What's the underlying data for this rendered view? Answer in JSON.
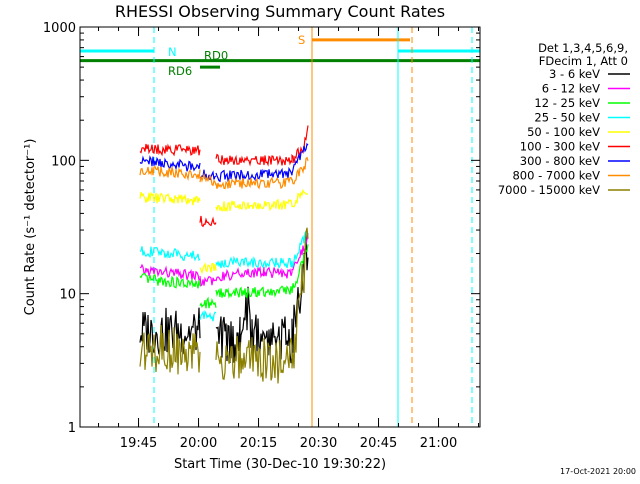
{
  "chart_data": {
    "type": "line",
    "title": "RHESSI Observing Summary Count Rates",
    "xlabel": "Start Time (30-Dec-10 19:30:22)",
    "ylabel": "Count Rate (s⁻¹ detector⁻¹)",
    "yscale": "log",
    "ylim": [
      1,
      1000
    ],
    "xlim_minutes": [
      0,
      100
    ],
    "x_ticks": [
      "19:45",
      "20:00",
      "20:15",
      "20:30",
      "20:45",
      "21:00"
    ],
    "y_ticks": [
      "1",
      "10",
      "100",
      "1000"
    ],
    "legend_header": [
      "Det 1,3,4,5,6,9,",
      "FDecim 1, Att 0"
    ],
    "timestamp": "17-Oct-2021 20:00",
    "series": [
      {
        "name": "3 - 6 keV",
        "color": "#000000",
        "segments": [
          [
            [
              15,
              5.2
            ],
            [
              30,
              5.2
            ]
          ],
          [
            [
              34,
              4.5
            ],
            [
              40,
              4.5
            ],
            [
              42,
              8
            ],
            [
              43,
              5
            ],
            [
              53,
              4.5
            ],
            [
              57,
              25
            ]
          ]
        ]
      },
      {
        "name": "6 - 12 keV",
        "color": "#ff00ff",
        "segments": [
          [
            [
              15,
              15
            ],
            [
              30,
              13.5
            ]
          ],
          [
            [
              30,
              12.5
            ],
            [
              34,
              12.5
            ]
          ],
          [
            [
              34,
              13.5
            ],
            [
              46,
              14.5
            ],
            [
              53,
              14
            ],
            [
              57,
              26
            ]
          ]
        ]
      },
      {
        "name": "12 - 25 keV",
        "color": "#00ff00",
        "segments": [
          [
            [
              15,
              13
            ],
            [
              30,
              11.5
            ]
          ],
          [
            [
              30,
              8.5
            ],
            [
              34,
              8.5
            ]
          ],
          [
            [
              34,
              10
            ],
            [
              53,
              10.5
            ],
            [
              57,
              22
            ]
          ]
        ]
      },
      {
        "name": "25 - 50 keV",
        "color": "#00ffff",
        "segments": [
          [
            [
              15,
              21
            ],
            [
              30,
              19
            ]
          ],
          [
            [
              30,
              6.8
            ],
            [
              34,
              6.8
            ]
          ],
          [
            [
              34,
              17
            ],
            [
              53,
              17
            ],
            [
              57,
              30
            ]
          ]
        ]
      },
      {
        "name": "50 - 100 keV",
        "color": "#ffff00",
        "segments": [
          [
            [
              15,
              53
            ],
            [
              30,
              50
            ]
          ],
          [
            [
              30,
              15.5
            ],
            [
              34,
              15.5
            ]
          ],
          [
            [
              34,
              45
            ],
            [
              53,
              47
            ],
            [
              57,
              60
            ]
          ]
        ]
      },
      {
        "name": "100 - 300 keV",
        "color": "#ff0000",
        "segments": [
          [
            [
              15,
              122
            ],
            [
              30,
              118
            ]
          ],
          [
            [
              30,
              35
            ],
            [
              34,
              35
            ]
          ],
          [
            [
              34,
              101
            ],
            [
              53,
              100
            ],
            [
              56,
              125
            ],
            [
              57,
              175
            ]
          ]
        ]
      },
      {
        "name": "300 - 800 keV",
        "color": "#0000ff",
        "segments": [
          [
            [
              15,
              100
            ],
            [
              30,
              88
            ]
          ],
          [
            [
              30,
              80
            ],
            [
              34,
              75
            ]
          ],
          [
            [
              34,
              76
            ],
            [
              53,
              80
            ],
            [
              57,
              135
            ]
          ]
        ]
      },
      {
        "name": "800 - 7000 keV",
        "color": "#ff8c00",
        "segments": [
          [
            [
              15,
              85
            ],
            [
              30,
              78
            ]
          ],
          [
            [
              30,
              74
            ],
            [
              34,
              70
            ]
          ],
          [
            [
              34,
              67
            ],
            [
              53,
              68
            ],
            [
              57,
              100
            ]
          ]
        ]
      },
      {
        "name": "7000 - 15000 keV",
        "color": "#8b8000",
        "segments": [
          [
            [
              15,
              4
            ],
            [
              30,
              3.6
            ]
          ],
          [
            [
              34,
              3.2
            ],
            [
              53,
              3.2
            ],
            [
              57,
              25
            ]
          ]
        ]
      }
    ],
    "flag_bars": [
      {
        "label": "N",
        "color": "#00ffff",
        "segments": [
          [
            0,
            18.5
          ],
          [
            79.5,
            100
          ]
        ]
      },
      {
        "label": "S",
        "color": "#ff8c00",
        "segments": [
          [
            58,
            82.5
          ]
        ]
      },
      {
        "label": "RD0",
        "color": "#008000",
        "segments": [
          [
            0,
            100
          ]
        ]
      },
      {
        "label": "RD6",
        "color": "#008000",
        "segments": [
          [
            30,
            35
          ]
        ]
      }
    ],
    "vertical_markers": [
      {
        "x": 0,
        "color": "#00ffff",
        "style": "solid"
      },
      {
        "x": 18.5,
        "color": "#00ffff",
        "style": "dashed"
      },
      {
        "x": 58,
        "color": "#ff8c00",
        "style": "solid"
      },
      {
        "x": 79.5,
        "color": "#00ffff",
        "style": "solid"
      },
      {
        "x": 83,
        "color": "#ff8c00",
        "style": "dashed"
      },
      {
        "x": 98,
        "color": "#00ffff",
        "style": "dashed"
      }
    ]
  }
}
